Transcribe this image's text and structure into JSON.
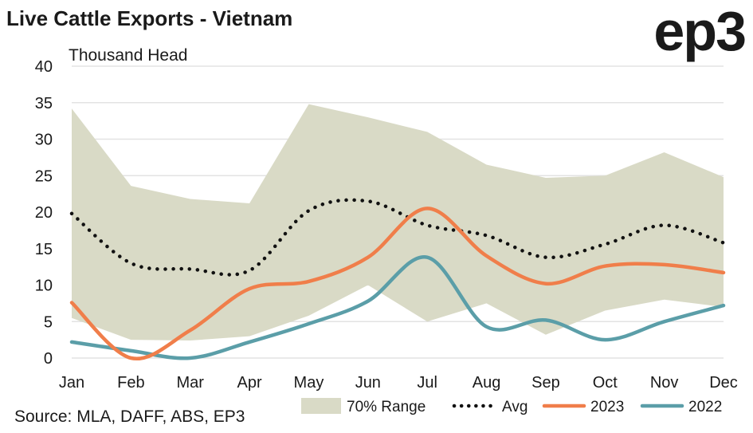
{
  "title": "Live Cattle Exports - Vietnam",
  "logo": "ep3",
  "source": "Source: MLA, DAFF, ABS, EP3",
  "colors": {
    "range": "#d9dac6",
    "avg": "#111111",
    "y2023": "#f07e4a",
    "y2022": "#5b9ea8"
  },
  "chart_data": {
    "type": "line",
    "title": "Live Cattle Exports - Vietnam",
    "ylabel": "Thousand Head",
    "xlabel": "",
    "ylim": [
      0,
      40
    ],
    "yticks": [
      0,
      5,
      10,
      15,
      20,
      25,
      30,
      35,
      40
    ],
    "grid": true,
    "legend_position": "bottom-right",
    "categories": [
      "Jan",
      "Feb",
      "Mar",
      "Apr",
      "May",
      "Jun",
      "Jul",
      "Aug",
      "Sep",
      "Oct",
      "Nov",
      "Dec"
    ],
    "range": {
      "name": "70% Range",
      "upper": [
        34.2,
        23.6,
        21.8,
        21.2,
        34.8,
        33.0,
        31.0,
        26.5,
        24.7,
        25.0,
        28.2,
        24.8
      ],
      "lower": [
        5.5,
        2.5,
        2.4,
        3.0,
        5.8,
        10.0,
        5.0,
        7.5,
        3.2,
        6.5,
        8.0,
        7.0
      ]
    },
    "series": [
      {
        "name": "Avg",
        "style": "dotted",
        "values": [
          19.8,
          13.0,
          12.2,
          12.0,
          20.2,
          21.5,
          18.2,
          16.8,
          13.8,
          15.6,
          18.2,
          15.8
        ]
      },
      {
        "name": "2023",
        "style": "solid",
        "values": [
          7.6,
          0.0,
          3.8,
          9.5,
          10.5,
          13.8,
          20.5,
          14.0,
          10.2,
          12.6,
          12.8,
          11.7
        ]
      },
      {
        "name": "2022",
        "style": "solid",
        "values": [
          2.2,
          1.0,
          0.0,
          2.2,
          4.7,
          7.8,
          13.8,
          4.3,
          5.2,
          2.5,
          5.0,
          7.2
        ]
      }
    ]
  }
}
